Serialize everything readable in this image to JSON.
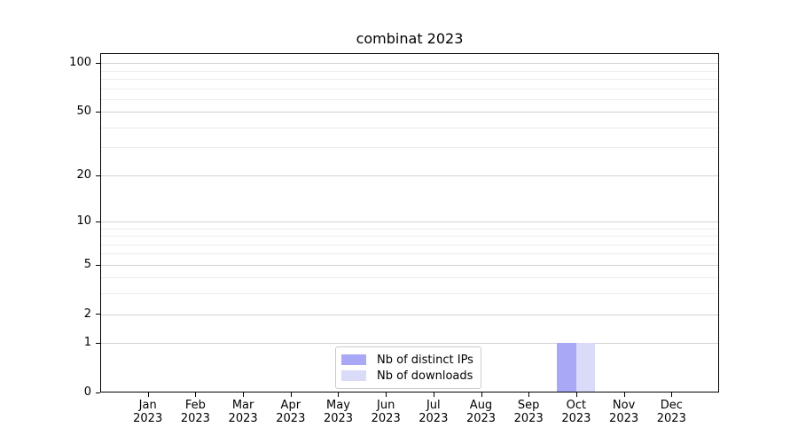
{
  "chart_data": {
    "type": "bar",
    "title": "combinat 2023",
    "categories": [
      "Jan",
      "Feb",
      "Mar",
      "Apr",
      "May",
      "Jun",
      "Jul",
      "Aug",
      "Sep",
      "Oct",
      "Nov",
      "Dec"
    ],
    "category_year": "2023",
    "series": [
      {
        "name": "Nb of distinct IPs",
        "color": "#a8a8f6",
        "values": [
          0,
          0,
          0,
          0,
          0,
          0,
          0,
          0,
          0,
          1,
          0,
          0
        ]
      },
      {
        "name": "Nb of downloads",
        "color": "#dadaf9",
        "values": [
          0,
          0,
          0,
          0,
          0,
          0,
          0,
          0,
          0,
          1,
          0,
          0
        ]
      }
    ],
    "yscale": "log1p",
    "ylim": [
      0,
      115
    ],
    "yticks": [
      0,
      1,
      2,
      5,
      10,
      20,
      50,
      100
    ],
    "yticks_minor": [
      3,
      4,
      6,
      7,
      8,
      9,
      30,
      40,
      60,
      70,
      80,
      90
    ],
    "xlabel": "",
    "ylabel": "",
    "grid": "horizontal",
    "legend": {
      "position": "lower center"
    },
    "colors": {
      "grid_major": "#d2d2d2",
      "grid_minor": "#ececec",
      "axis": "#000000",
      "text": "#000000",
      "legend_border": "#cccccc"
    }
  }
}
